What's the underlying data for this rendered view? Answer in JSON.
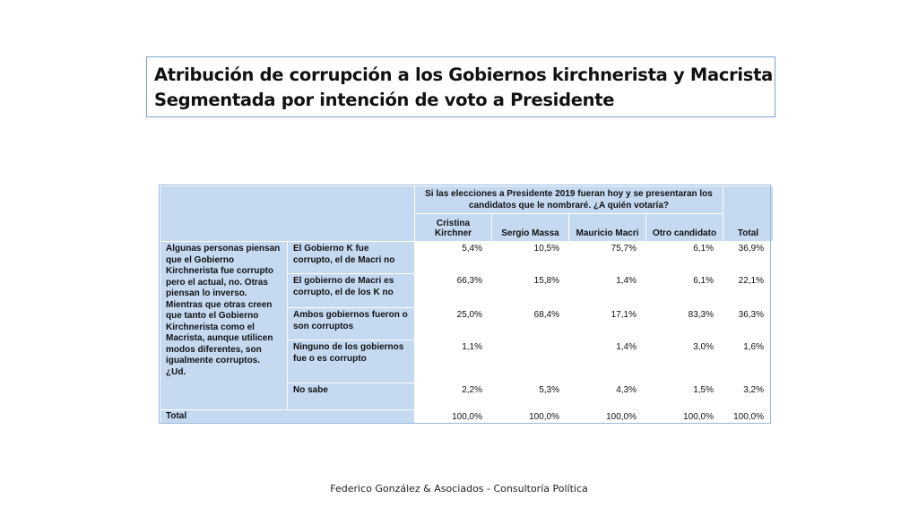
{
  "title": {
    "line1": "Atribución de corrupción a los Gobiernos kirchnerista  y Macrista",
    "line2": "Segmentada por intención de voto a Presidente"
  },
  "table": {
    "question": "Si las elecciones a Presidente 2019 fueran hoy y se presentaran los candidatos que le nombraré. ¿A quién votaría?",
    "columns": [
      "Cristina Kirchner",
      "Sergio Massa",
      "Mauricio Macri",
      "Otro candidato"
    ],
    "total_col": "Total",
    "row_question": "Algunas personas piensan que el Gobierno Kirchnerista fue corrupto pero el actual, no. Otras piensan lo inverso. Mientras que otras creen que tanto el Gobierno Kirchnerista como el Macrista, aunque utilicen modos diferentes, son igualmente corruptos. ¿Ud.",
    "rows": [
      {
        "label": "El Gobierno K fue corrupto, el de Macri no",
        "values": [
          "5,4%",
          "10,5%",
          "75,7%",
          "6,1%",
          "36,9%"
        ]
      },
      {
        "label": "El gobierno de Macri es corrupto, el de los K no",
        "values": [
          "66,3%",
          "15,8%",
          "1,4%",
          "6,1%",
          "22,1%"
        ]
      },
      {
        "label": "Ambos gobiernos fueron o son corruptos",
        "values": [
          "25,0%",
          "68,4%",
          "17,1%",
          "83,3%",
          "36,3%"
        ]
      },
      {
        "label": "Ninguno de los gobiernos fue o es corrupto",
        "values": [
          "1,1%",
          "",
          "1,4%",
          "3,0%",
          "1,6%"
        ]
      },
      {
        "label": "No sabe",
        "values": [
          "2,2%",
          "5,3%",
          "4,3%",
          "1,5%",
          "3,2%"
        ]
      }
    ],
    "total_row": {
      "label": "Total",
      "values": [
        "100,0%",
        "100,0%",
        "100,0%",
        "100,0%",
        "100,0%"
      ]
    }
  },
  "footer": "Federico González & Asociados - Consultoría Política",
  "colors": {
    "header_fill": "#c5d9f1",
    "title_border": "#7aa3cf"
  }
}
